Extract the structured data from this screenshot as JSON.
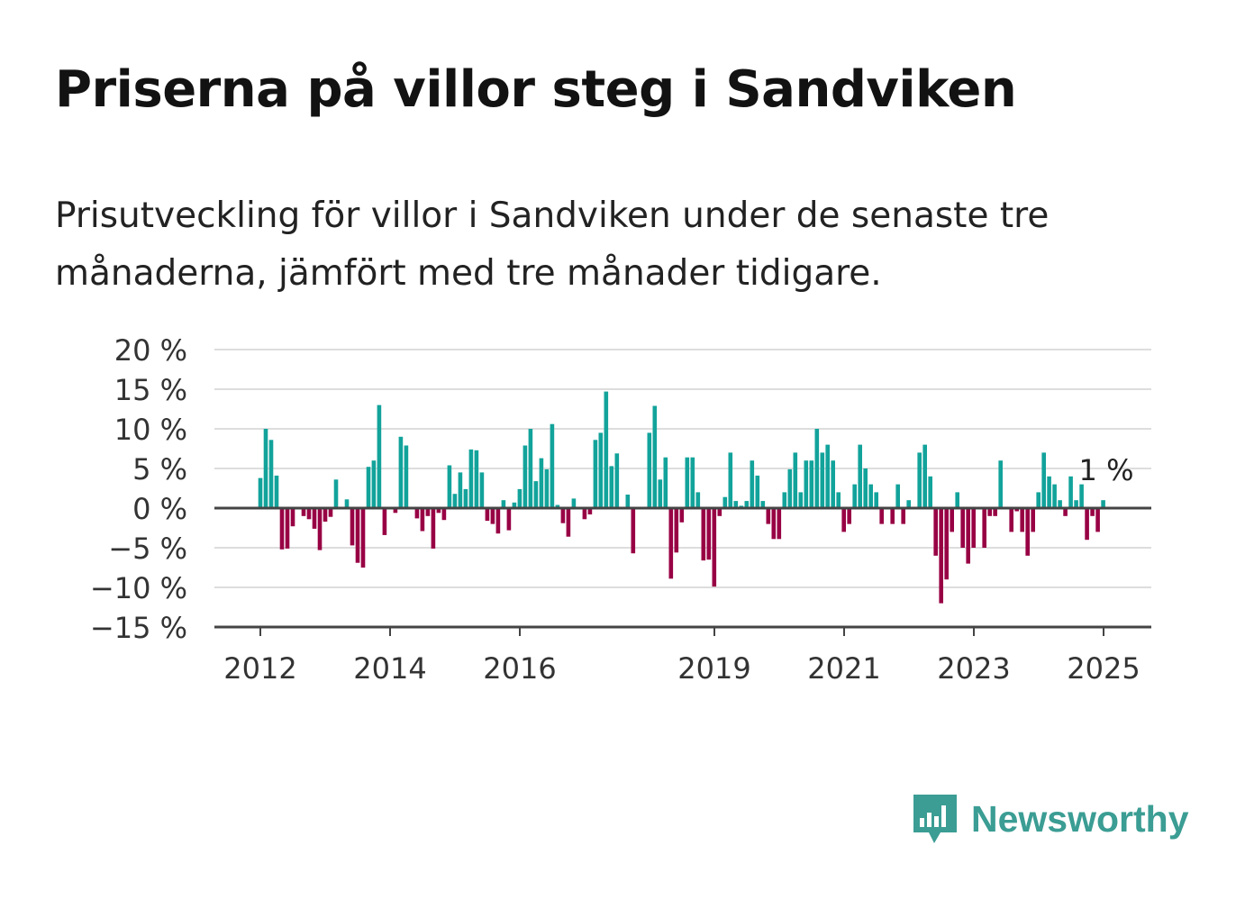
{
  "title": "Priserna på villor steg i Sandviken",
  "subtitle": "Prisutveckling för villor i Sandviken under de senaste tre månaderna, jämfört med tre månader tidigare.",
  "brand": {
    "name": "Newsworthy",
    "logo_icon": "bar-chart-speech-bubble-icon",
    "color": "#3b9d94"
  },
  "colors": {
    "positive": "#12a39b",
    "negative": "#980044",
    "grid": "#dddddd",
    "axis": "#444444"
  },
  "chart_data": {
    "type": "bar",
    "title": "Priserna på villor steg i Sandviken",
    "xlabel": "",
    "ylabel": "",
    "x_unit": "year",
    "ylim": [
      -15,
      20
    ],
    "yticks": [
      20,
      15,
      10,
      5,
      0,
      -5,
      -10,
      -15
    ],
    "ytick_labels": [
      "20 %",
      "15 %",
      "10 %",
      "5 %",
      "0 %",
      "−5 %",
      "−10 %",
      "−15 %"
    ],
    "xticks": [
      2012,
      2014,
      2016,
      2019,
      2021,
      2023,
      2025
    ],
    "xtick_labels": [
      "2012",
      "2014",
      "2016",
      "2019",
      "2021",
      "2023",
      "2025"
    ],
    "x_start": 2012.0,
    "x_step": 0.0833,
    "grid": true,
    "legend": "none",
    "annotation": {
      "text": "1 %",
      "target": "last-bar"
    },
    "values": [
      3.8,
      10,
      8.6,
      4.1,
      -5.2,
      -5.1,
      -2.3,
      0,
      -1,
      -1.4,
      -2.6,
      -5.3,
      -1.7,
      -1.1,
      3.6,
      0,
      1.1,
      -4.7,
      -6.9,
      -7.5,
      5.2,
      6,
      13,
      -3.4,
      0,
      -0.6,
      9,
      7.9,
      0,
      -1.3,
      -2.9,
      -1,
      -5.1,
      -0.6,
      -1.5,
      5.4,
      1.8,
      4.5,
      2.4,
      7.4,
      7.3,
      4.5,
      -1.6,
      -2,
      -3.2,
      1,
      -2.8,
      0.7,
      2.4,
      7.9,
      10,
      3.4,
      6.3,
      4.9,
      10.6,
      0.4,
      -1.9,
      -3.6,
      1.2,
      0,
      -1.4,
      -0.8,
      8.6,
      9.5,
      14.7,
      5.3,
      6.9,
      0,
      1.7,
      -5.7,
      0,
      0,
      9.5,
      12.9,
      3.6,
      6.4,
      -8.9,
      -5.6,
      -1.8,
      6.4,
      6.4,
      2,
      -6.6,
      -6.5,
      -9.9,
      -1,
      1.4,
      7,
      0.9,
      0.3,
      0.9,
      6,
      4.1,
      0.9,
      -2,
      -3.9,
      -3.9,
      2,
      4.9,
      7,
      2,
      6,
      6,
      10,
      7,
      8,
      6,
      2,
      -3,
      -2,
      3,
      8,
      5,
      3,
      2,
      -2,
      0,
      -2,
      3,
      -2,
      1,
      0,
      7,
      8,
      4,
      -6,
      -12,
      -9,
      -3,
      2,
      -5,
      -7,
      -5,
      0,
      -5,
      -1,
      -1,
      6,
      0,
      -3,
      -0.4,
      -3,
      -6,
      -3,
      2,
      7,
      4,
      3,
      1,
      -1,
      4,
      1,
      3,
      -4,
      -1,
      -3,
      1
    ]
  }
}
